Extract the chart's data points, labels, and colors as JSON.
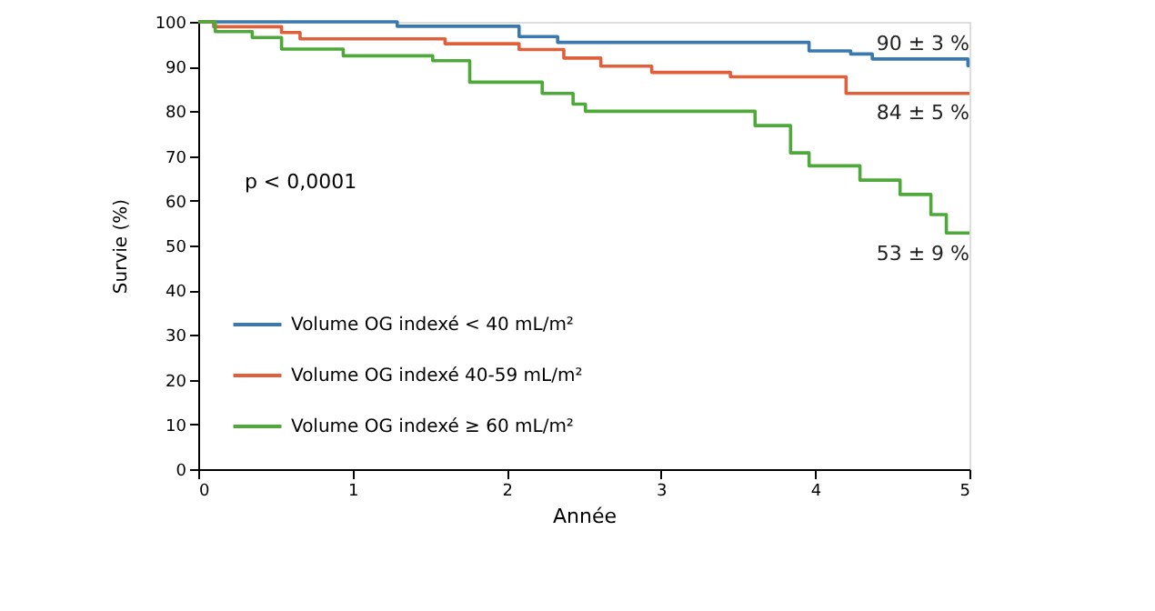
{
  "chart_data": {
    "type": "step",
    "xlabel": "Année",
    "ylabel": "Survie (%)",
    "xlim": [
      0,
      5
    ],
    "xticks": [
      0,
      1,
      2,
      3,
      4,
      5
    ],
    "ylim": [
      0,
      100
    ],
    "yticks": [
      0,
      10,
      20,
      30,
      40,
      50,
      60,
      70,
      80,
      90,
      100
    ],
    "grid": false,
    "legend": "bottom left",
    "line_style": "solid",
    "marker": "none",
    "annotations": [
      "p < 0,0001",
      "90 ± 3 %",
      "84 ± 5 %",
      "53 ± 9 %"
    ],
    "series": [
      {
        "name": "Volume OG indexé < 40 mL/m²",
        "color": "#3a78b0",
        "x": [
          0,
          1.29,
          2.08,
          2.33,
          3.96,
          4.23,
          4.37,
          4.99,
          5
        ],
        "values": [
          100,
          99,
          96.7,
          95.4,
          93.5,
          92.8,
          91.7,
          90.2,
          90.2
        ]
      },
      {
        "name": "Volume OG indexé 40-59 mL/m²",
        "color": "#e0603c",
        "x": [
          0,
          0.1,
          0.54,
          0.66,
          1.6,
          2.08,
          2.37,
          2.61,
          2.94,
          3.45,
          4.2,
          5
        ],
        "values": [
          100,
          98.9,
          97.6,
          96.2,
          95.1,
          93.8,
          91.9,
          90.1,
          88.7,
          87.7,
          84,
          84
        ]
      },
      {
        "name": "Volume OG indexé ≥ 60 mL/m²",
        "color": "#4ea83a",
        "x": [
          0,
          0.11,
          0.35,
          0.54,
          0.94,
          1.52,
          1.76,
          2.23,
          2.43,
          2.51,
          3.61,
          3.84,
          3.96,
          4.29,
          4.55,
          4.75,
          4.85,
          5
        ],
        "values": [
          100,
          97.8,
          96.5,
          93.9,
          92.4,
          91.3,
          86.5,
          84,
          81.6,
          80,
          76.8,
          70.7,
          67.8,
          64.6,
          61.4,
          56.9,
          52.8,
          52.8
        ]
      }
    ]
  }
}
